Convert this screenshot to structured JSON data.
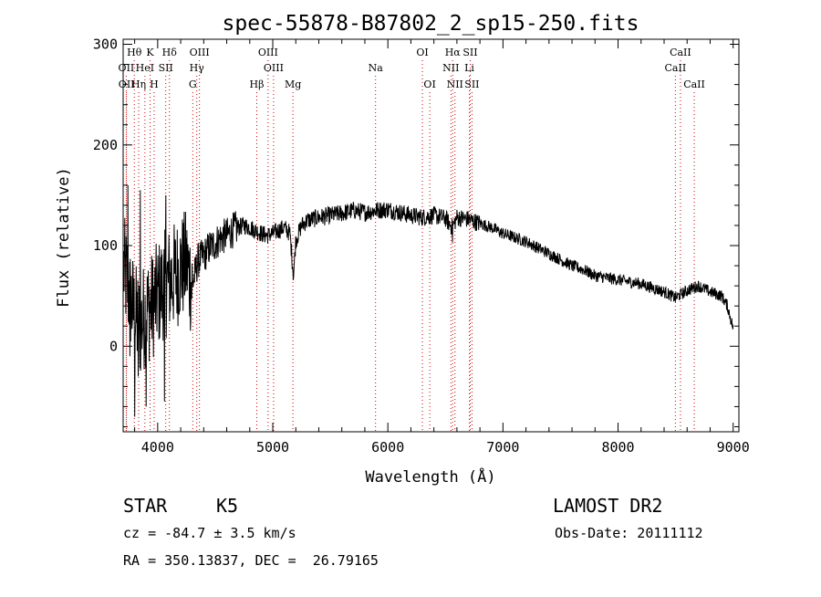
{
  "chart_data": {
    "type": "line",
    "title": "spec-55878-B87802_2_sp15-250.fits",
    "xlabel": "Wavelength (Å)",
    "ylabel": "Flux (relative)",
    "xlim": [
      3700,
      9050
    ],
    "ylim": [
      -85,
      305
    ],
    "xticks": [
      4000,
      5000,
      6000,
      7000,
      8000,
      9000
    ],
    "yticks": [
      0,
      100,
      200,
      300
    ],
    "grid": false,
    "spectrum_anchors": [
      [
        3700,
        80
      ],
      [
        3740,
        60
      ],
      [
        3800,
        30
      ],
      [
        3850,
        20
      ],
      [
        3900,
        35
      ],
      [
        3950,
        40
      ],
      [
        4000,
        50
      ],
      [
        4050,
        60
      ],
      [
        4100,
        65
      ],
      [
        4150,
        70
      ],
      [
        4200,
        78
      ],
      [
        4250,
        82
      ],
      [
        4300,
        60
      ],
      [
        4350,
        85
      ],
      [
        4400,
        90
      ],
      [
        4450,
        98
      ],
      [
        4500,
        102
      ],
      [
        4550,
        108
      ],
      [
        4600,
        110
      ],
      [
        4650,
        115
      ],
      [
        4700,
        118
      ],
      [
        4750,
        120
      ],
      [
        4800,
        118
      ],
      [
        4850,
        115
      ],
      [
        4900,
        112
      ],
      [
        4950,
        110
      ],
      [
        5000,
        112
      ],
      [
        5050,
        115
      ],
      [
        5100,
        118
      ],
      [
        5150,
        112
      ],
      [
        5180,
        70
      ],
      [
        5200,
        105
      ],
      [
        5250,
        120
      ],
      [
        5300,
        125
      ],
      [
        5400,
        128
      ],
      [
        5500,
        130
      ],
      [
        5600,
        132
      ],
      [
        5700,
        135
      ],
      [
        5800,
        133
      ],
      [
        5900,
        135
      ],
      [
        6000,
        136
      ],
      [
        6100,
        133
      ],
      [
        6200,
        130
      ],
      [
        6300,
        128
      ],
      [
        6400,
        130
      ],
      [
        6500,
        127
      ],
      [
        6560,
        118
      ],
      [
        6600,
        128
      ],
      [
        6700,
        126
      ],
      [
        6800,
        122
      ],
      [
        6900,
        118
      ],
      [
        7000,
        112
      ],
      [
        7100,
        108
      ],
      [
        7200,
        104
      ],
      [
        7300,
        98
      ],
      [
        7400,
        92
      ],
      [
        7500,
        86
      ],
      [
        7600,
        80
      ],
      [
        7700,
        76
      ],
      [
        7800,
        70
      ],
      [
        7900,
        68
      ],
      [
        8000,
        66
      ],
      [
        8100,
        64
      ],
      [
        8200,
        62
      ],
      [
        8300,
        58
      ],
      [
        8400,
        54
      ],
      [
        8500,
        48
      ],
      [
        8550,
        52
      ],
      [
        8650,
        58
      ],
      [
        8700,
        60
      ],
      [
        8800,
        54
      ],
      [
        8900,
        50
      ],
      [
        8950,
        40
      ],
      [
        9000,
        18
      ]
    ],
    "noise_segments": [
      {
        "x": [
          3700,
          4300
        ],
        "amplitude": 55
      },
      {
        "x": [
          4300,
          4700
        ],
        "amplitude": 18
      },
      {
        "x": [
          4700,
          6800
        ],
        "amplitude": 9
      },
      {
        "x": [
          6800,
          9000
        ],
        "amplitude": 6
      }
    ],
    "spikes": [
      [
        3740,
        160
      ],
      [
        3760,
        -10
      ],
      [
        3800,
        -70
      ],
      [
        3830,
        -30
      ],
      [
        3850,
        155
      ],
      [
        3900,
        -60
      ],
      [
        4060,
        -55
      ],
      [
        4070,
        150
      ],
      [
        4500,
        92
      ],
      [
        6560,
        103
      ]
    ],
    "spectral_lines": [
      {
        "label": "Hθ",
        "wavelength": 3797,
        "row": 0
      },
      {
        "label": "K",
        "wavelength": 3934,
        "row": 0
      },
      {
        "label": "Hδ",
        "wavelength": 4102,
        "row": 0
      },
      {
        "label": "OIII",
        "wavelength": 4363,
        "row": 0
      },
      {
        "label": "OIII",
        "wavelength": 4959,
        "row": 0
      },
      {
        "label": "OI",
        "wavelength": 6300,
        "row": 0
      },
      {
        "label": "Hα",
        "wavelength": 6563,
        "row": 0
      },
      {
        "label": "SII",
        "wavelength": 6716,
        "row": 0
      },
      {
        "label": "CaII",
        "wavelength": 8542,
        "row": 0
      },
      {
        "label": "OII",
        "wavelength": 3727,
        "row": 1
      },
      {
        "label": "HeI",
        "wavelength": 3889,
        "row": 1
      },
      {
        "label": "SII",
        "wavelength": 4070,
        "row": 1
      },
      {
        "label": "Hγ",
        "wavelength": 4340,
        "row": 1
      },
      {
        "label": "OIII",
        "wavelength": 5007,
        "row": 1
      },
      {
        "label": "Na",
        "wavelength": 5893,
        "row": 1
      },
      {
        "label": "NII",
        "wavelength": 6548,
        "row": 1
      },
      {
        "label": "Li",
        "wavelength": 6708,
        "row": 1
      },
      {
        "label": "CaII",
        "wavelength": 8498,
        "row": 1
      },
      {
        "label": "OII",
        "wavelength": 3729,
        "row": 2
      },
      {
        "label": "Hη",
        "wavelength": 3835,
        "row": 2
      },
      {
        "label": "H",
        "wavelength": 3969,
        "row": 2
      },
      {
        "label": "G",
        "wavelength": 4305,
        "row": 2
      },
      {
        "label": "Hβ",
        "wavelength": 4861,
        "row": 2
      },
      {
        "label": "Mg",
        "wavelength": 5175,
        "row": 2
      },
      {
        "label": "OI",
        "wavelength": 6364,
        "row": 2
      },
      {
        "label": "NII",
        "wavelength": 6583,
        "row": 2
      },
      {
        "label": "SII",
        "wavelength": 6731,
        "row": 2
      },
      {
        "label": "CaII",
        "wavelength": 8662,
        "row": 2
      }
    ],
    "line_marker_color": "#d00000"
  },
  "info": {
    "class_label": "STAR",
    "subclass": "K5",
    "survey": "LAMOST DR2",
    "redshift": "cz = -84.7 ± 3.5 km/s",
    "obs_date": "Obs-Date: 20111112",
    "coords": "RA = 350.13837, DEC =  26.79165"
  }
}
